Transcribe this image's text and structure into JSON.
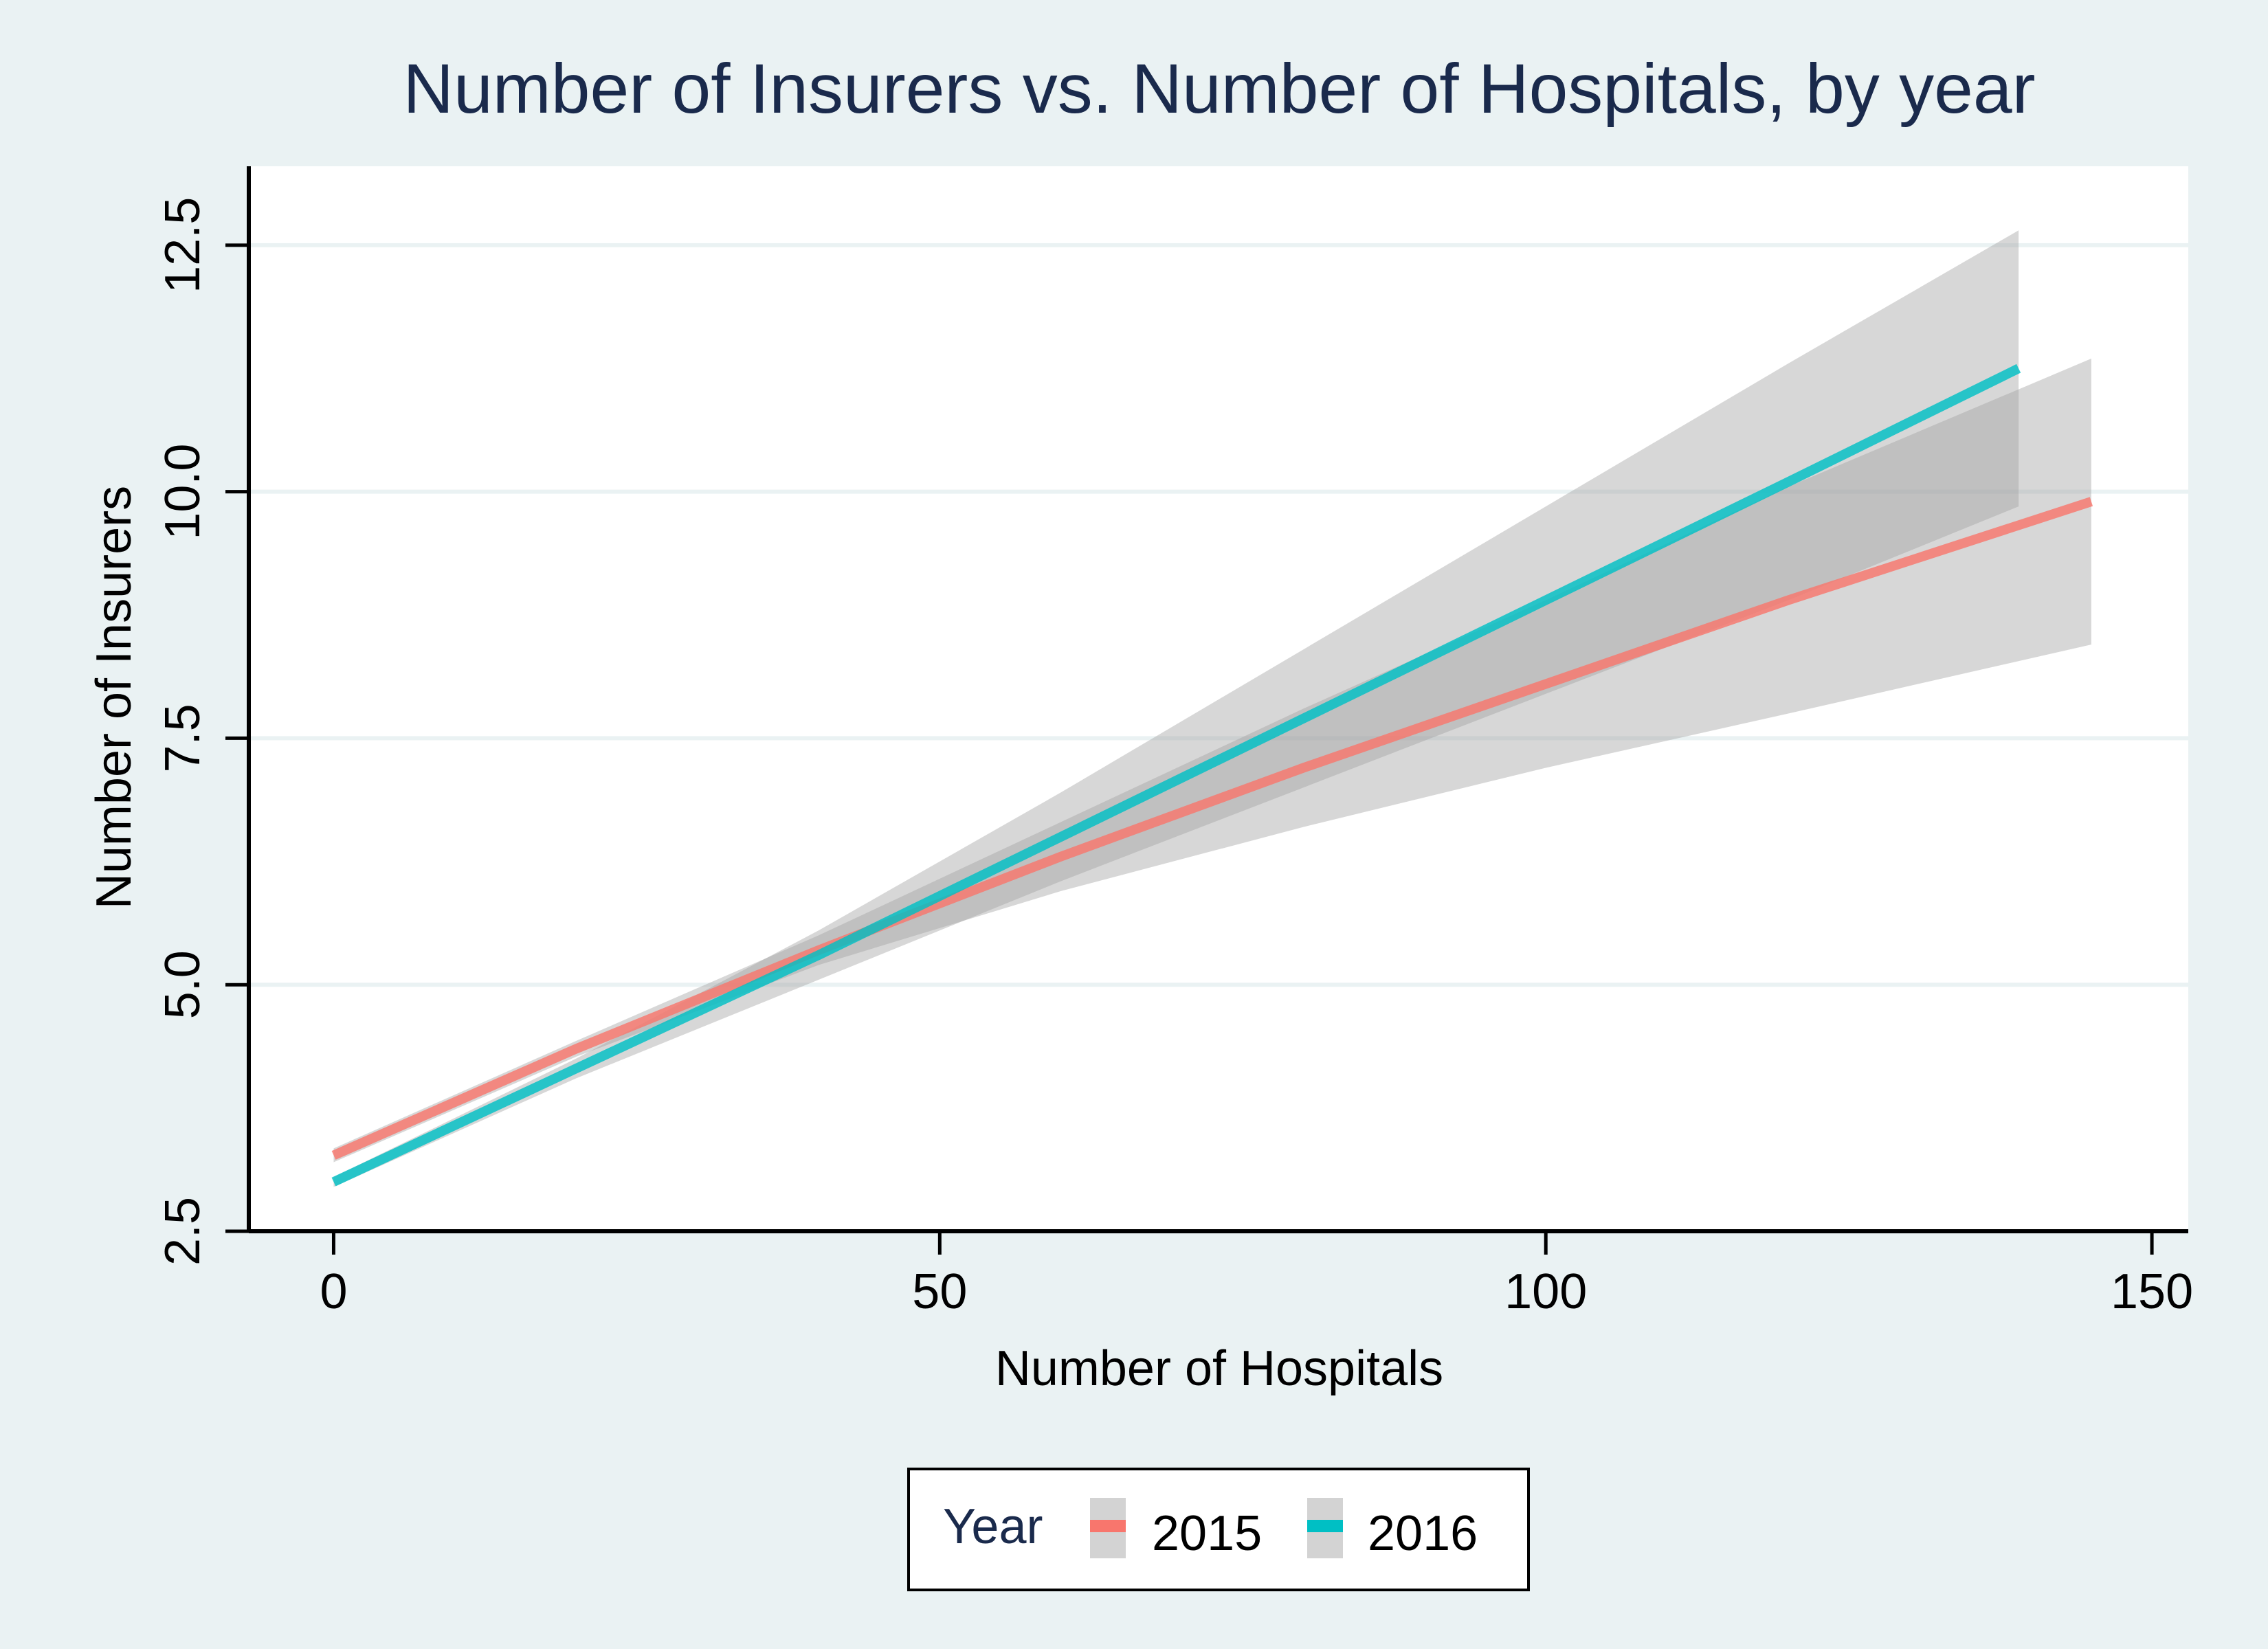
{
  "chart_data": {
    "type": "line",
    "title": "Number of Insurers vs. Number of Hospitals, by year",
    "xlabel": "Number of Hospitals",
    "ylabel": "Number of Insurers",
    "xlim": [
      -7,
      153
    ],
    "ylim": [
      2.5,
      13.3
    ],
    "xticks": [
      0,
      50,
      100,
      150
    ],
    "xtick_labels": [
      "0",
      "50",
      "100",
      "150"
    ],
    "yticks": [
      2.5,
      5.0,
      7.5,
      10.0,
      12.5
    ],
    "ytick_labels": [
      "2.5",
      "5.0",
      "7.5",
      "10.0",
      "12.5"
    ],
    "grid": "horizontal",
    "legend": {
      "title": "Year",
      "placement": "bottom",
      "entries": [
        "2015",
        "2016"
      ]
    },
    "series": [
      {
        "name": "2015",
        "color": "#f8766d",
        "band_color": "#a0a0a0",
        "x": [
          0,
          20,
          40,
          60,
          80,
          100,
          120,
          145
        ],
        "y": [
          3.27,
          4.35,
          5.35,
          6.3,
          7.2,
          8.05,
          8.9,
          9.9
        ],
        "ci_lower": [
          3.2,
          4.27,
          5.2,
          5.95,
          6.6,
          7.2,
          7.75,
          8.45
        ],
        "ci_upper": [
          3.34,
          4.43,
          5.5,
          6.65,
          7.8,
          8.9,
          10.05,
          11.35
        ]
      },
      {
        "name": "2016",
        "color": "#00bfc4",
        "band_color": "#a0a0a0",
        "x": [
          0,
          20,
          40,
          60,
          80,
          100,
          120,
          139
        ],
        "y": [
          3.0,
          4.15,
          5.3,
          6.5,
          7.7,
          8.9,
          10.1,
          11.25
        ],
        "ci_lower": [
          2.95,
          4.05,
          5.05,
          6.05,
          7.0,
          7.95,
          8.9,
          9.85
        ],
        "ci_upper": [
          3.05,
          4.25,
          5.55,
          6.95,
          8.4,
          9.85,
          11.3,
          12.65
        ]
      }
    ]
  }
}
